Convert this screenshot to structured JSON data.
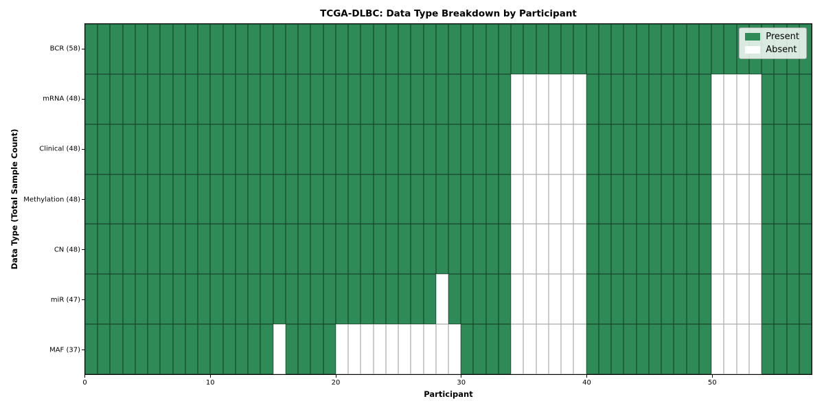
{
  "chart_data": {
    "type": "heatmap",
    "title": "TCGA-DLBC: Data Type Breakdown by Participant",
    "xlabel": "Participant",
    "ylabel": "Data Type (Total Sample Count)",
    "n_participants": 58,
    "x_range": [
      0,
      58
    ],
    "x_ticks": [
      0,
      10,
      20,
      30,
      40,
      50
    ],
    "grid": true,
    "legend_position": "upper right",
    "legend": [
      {
        "label": "Present",
        "color": "#2e8b57"
      },
      {
        "label": "Absent",
        "color": "#ffffff"
      }
    ],
    "colors": {
      "present": "#2e8b57",
      "absent": "#ffffff"
    },
    "rows": [
      {
        "label": "BCR (58)",
        "present_count": 58,
        "absent_participants": []
      },
      {
        "label": "mRNA (48)",
        "present_count": 48,
        "absent_participants": [
          34,
          35,
          36,
          37,
          38,
          39,
          50,
          51,
          52,
          53
        ]
      },
      {
        "label": "Clinical (48)",
        "present_count": 48,
        "absent_participants": [
          34,
          35,
          36,
          37,
          38,
          39,
          50,
          51,
          52,
          53
        ]
      },
      {
        "label": "Methylation (48)",
        "present_count": 48,
        "absent_participants": [
          34,
          35,
          36,
          37,
          38,
          39,
          50,
          51,
          52,
          53
        ]
      },
      {
        "label": "CN (48)",
        "present_count": 48,
        "absent_participants": [
          34,
          35,
          36,
          37,
          38,
          39,
          50,
          51,
          52,
          53
        ]
      },
      {
        "label": "miR (47)",
        "present_count": 47,
        "absent_participants": [
          28,
          34,
          35,
          36,
          37,
          38,
          39,
          50,
          51,
          52,
          53
        ]
      },
      {
        "label": "MAF (37)",
        "present_count": 37,
        "absent_participants": [
          15,
          20,
          21,
          22,
          23,
          24,
          25,
          26,
          27,
          28,
          29,
          34,
          35,
          36,
          37,
          38,
          39,
          50,
          51,
          52,
          53
        ]
      }
    ]
  }
}
